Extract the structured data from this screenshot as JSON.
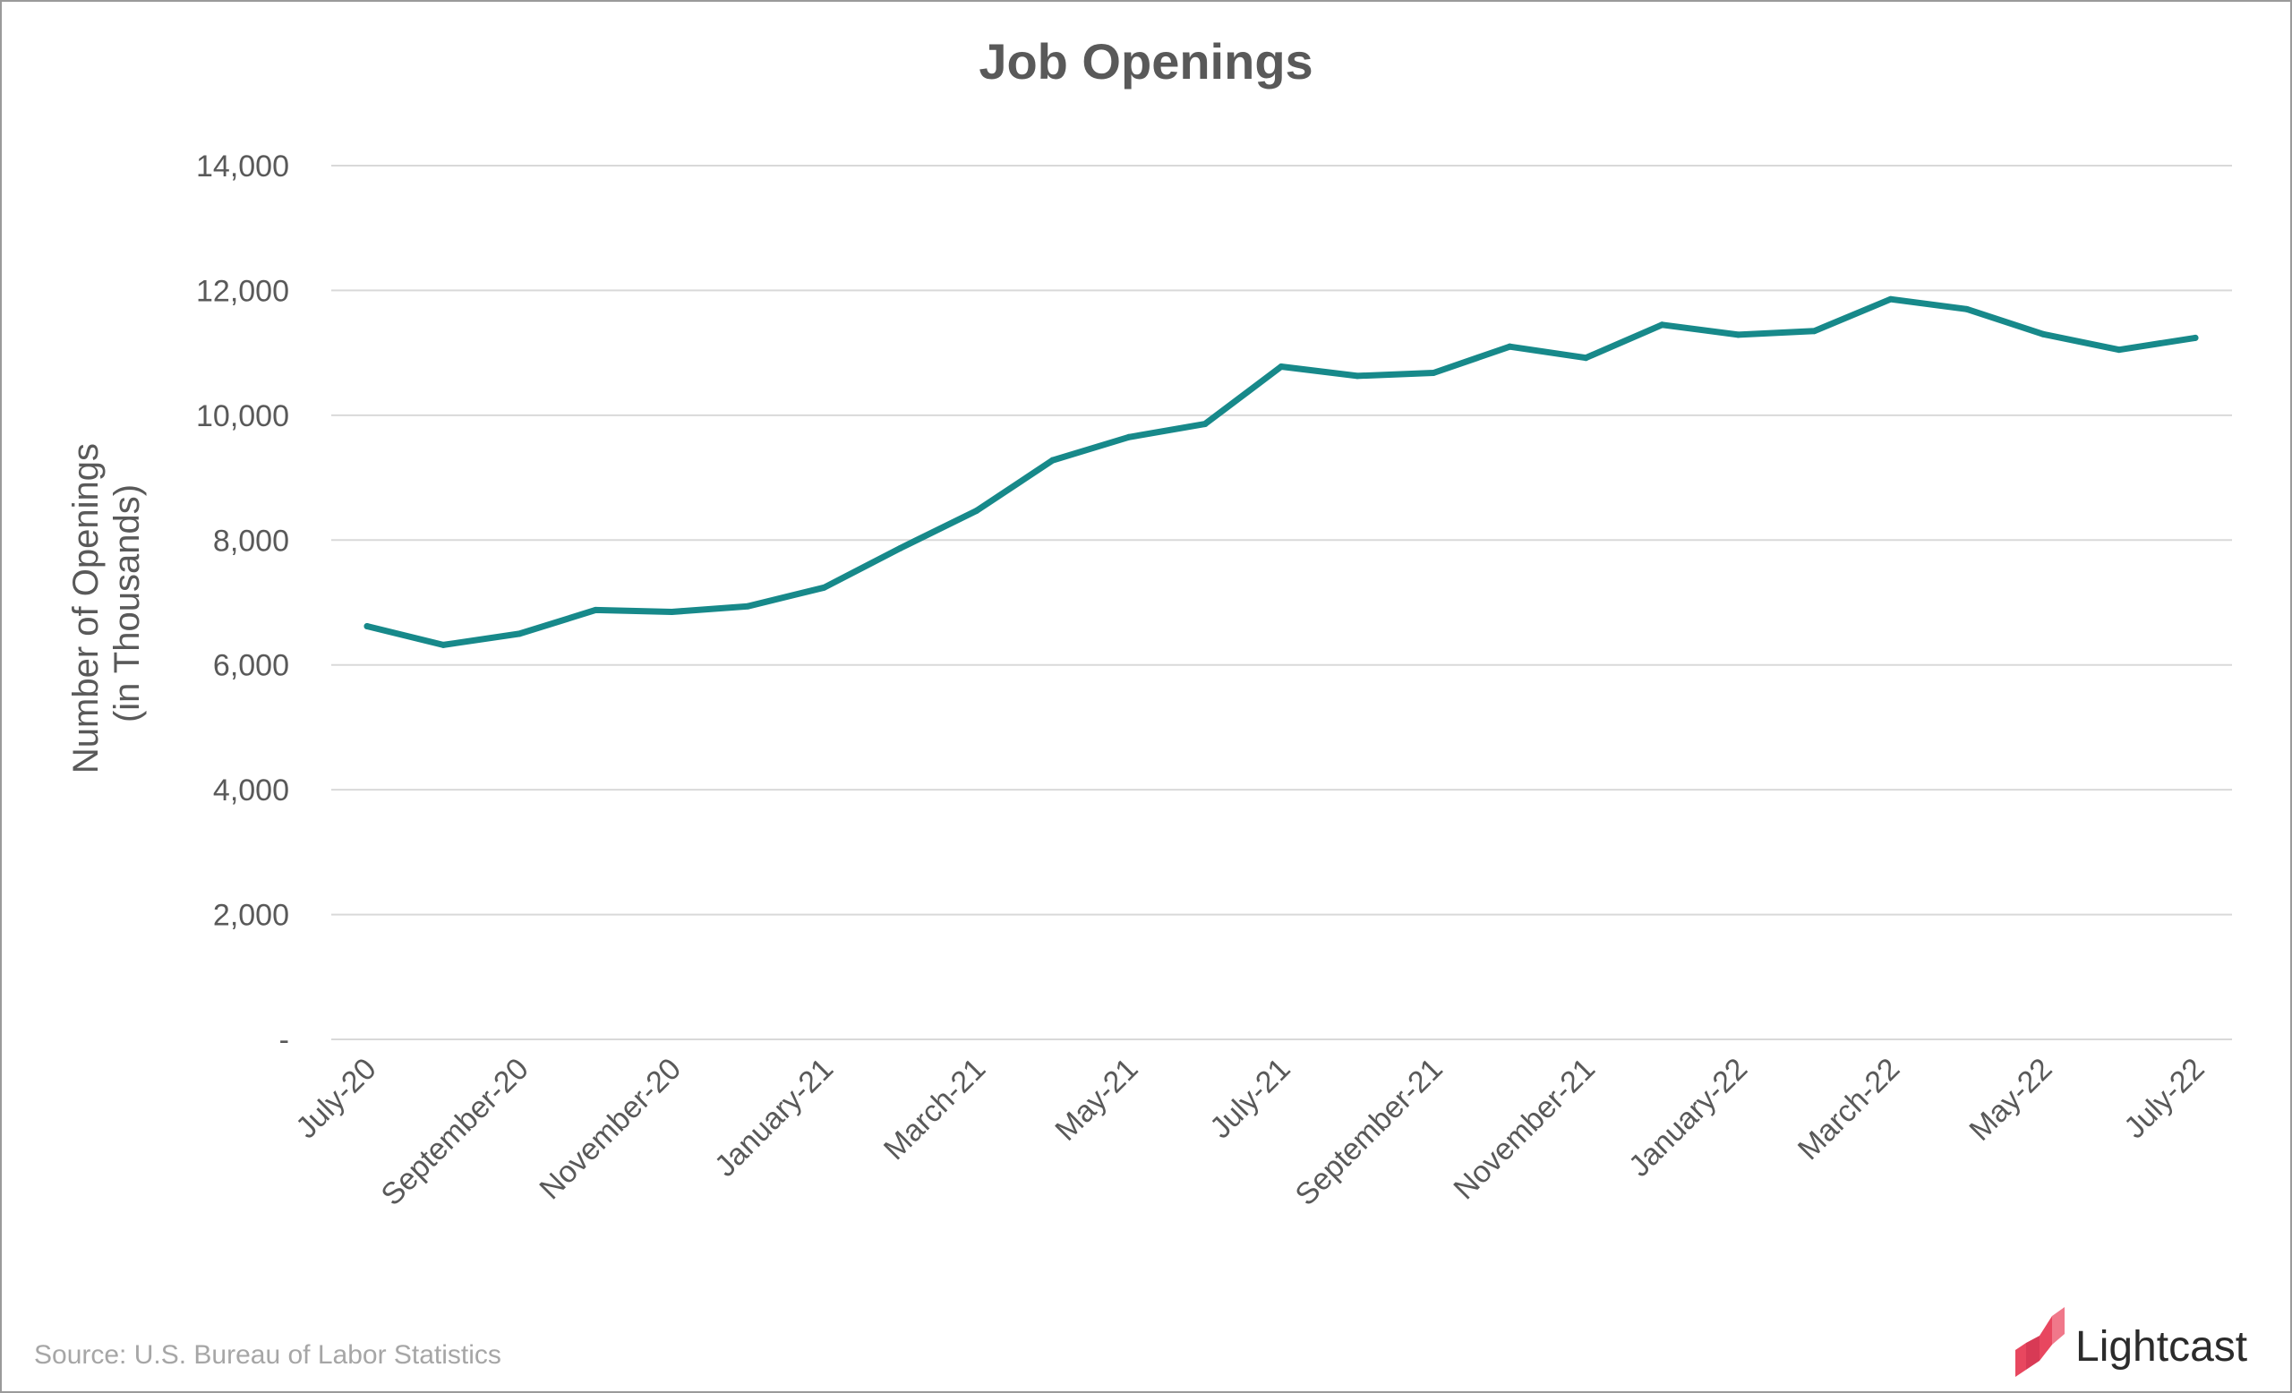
{
  "colors": {
    "line": "#17898a",
    "grid": "#d9d9d9",
    "text": "#595959",
    "source": "#a6a6a6",
    "brand": "#e8475f"
  },
  "chart_data": {
    "type": "line",
    "title": "Job Openings",
    "ylabel": [
      "Number of Openings",
      "(in Thousands)"
    ],
    "xlabel": "",
    "ylim": [
      0,
      14000
    ],
    "yticks": [
      {
        "value": 0,
        "label": "-"
      },
      {
        "value": 2000,
        "label": "2,000"
      },
      {
        "value": 4000,
        "label": "4,000"
      },
      {
        "value": 6000,
        "label": "6,000"
      },
      {
        "value": 8000,
        "label": "8,000"
      },
      {
        "value": 10000,
        "label": "10,000"
      },
      {
        "value": 12000,
        "label": "12,000"
      },
      {
        "value": 14000,
        "label": "14,000"
      }
    ],
    "grid": true,
    "x": [
      "July-20",
      "August-20",
      "September-20",
      "October-20",
      "November-20",
      "December-20",
      "January-21",
      "February-21",
      "March-21",
      "April-21",
      "May-21",
      "June-21",
      "July-21",
      "August-21",
      "September-21",
      "October-21",
      "November-21",
      "December-21",
      "January-22",
      "February-22",
      "March-22",
      "April-22",
      "May-22",
      "June-22",
      "July-22"
    ],
    "xticks": [
      "July-20",
      "September-20",
      "November-20",
      "January-21",
      "March-21",
      "May-21",
      "July-21",
      "September-21",
      "November-21",
      "January-22",
      "March-22",
      "May-22",
      "July-22"
    ],
    "series": [
      {
        "values": [
          6620,
          6320,
          6500,
          6880,
          6850,
          6940,
          7240,
          7870,
          8470,
          9280,
          9650,
          9860,
          10780,
          10630,
          10680,
          11100,
          10920,
          11450,
          11290,
          11350,
          11860,
          11700,
          11300,
          11050,
          11240
        ]
      }
    ]
  },
  "footer": {
    "source": "Source:  U.S. Bureau of Labor Statistics",
    "brand_name": "Lightcast",
    "logo_icon": "lightcast-logo-icon"
  }
}
